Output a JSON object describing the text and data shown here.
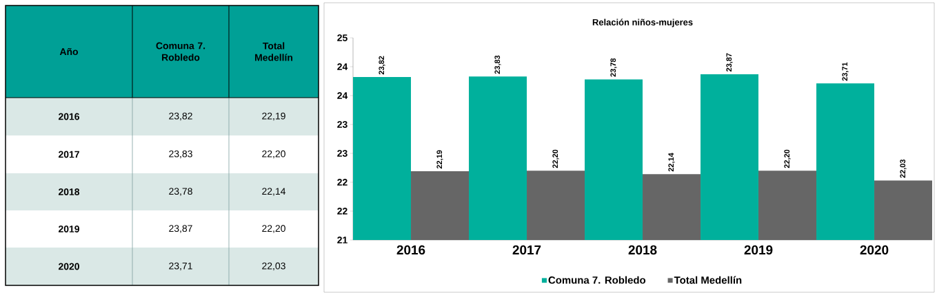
{
  "chart_data": {
    "type": "bar",
    "title": "Relación niños-mujeres",
    "annotations": [
      "Año"
    ],
    "categories": [
      "2016",
      "2017",
      "2018",
      "2019",
      "2020"
    ],
    "series": [
      {
        "name": "Comuna 7. Robledo",
        "color": "#00b09c",
        "values": [
          23.82,
          23.83,
          23.78,
          23.87,
          23.71
        ],
        "value_labels": [
          "23,82",
          "23,83",
          "23,78",
          "23,87",
          "23,71"
        ]
      },
      {
        "name": "Total Medellín",
        "color": "#666666",
        "values": [
          22.19,
          22.2,
          22.14,
          22.2,
          22.03
        ],
        "value_labels": [
          "22,19",
          "22,20",
          "22,14",
          "22,20",
          "22,03"
        ]
      }
    ],
    "ylim": [
      21,
      24.5
    ],
    "yticks": [
      21,
      {
        "value": 21.5,
        "label": "22"
      },
      22,
      {
        "value": 22.5,
        "label": "23"
      },
      23,
      {
        "value": 23.5,
        "label": "24"
      },
      24,
      {
        "value": 24.5,
        "label": "25"
      }
    ],
    "legend": "bottom"
  }
}
